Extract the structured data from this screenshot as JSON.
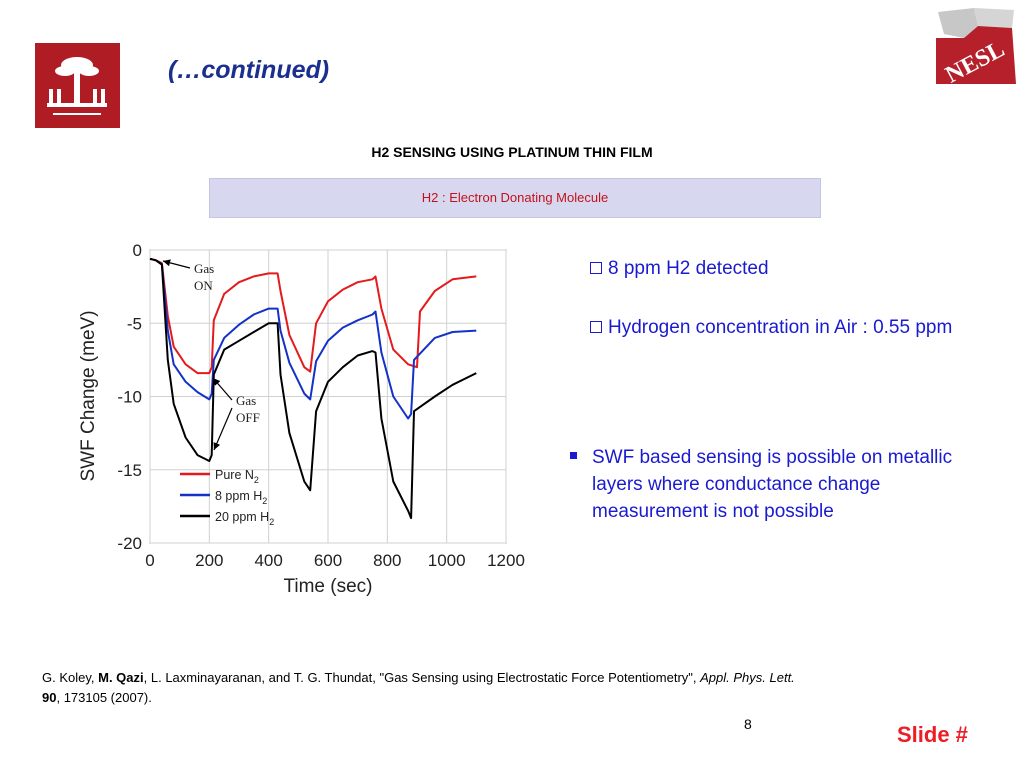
{
  "header": {
    "title": "(…continued)",
    "heading": "H2 SENSING USING PLATINUM THIN FILM",
    "band_text": "H2 : Electron Donating Molecule"
  },
  "logos": {
    "right_text": "NESL"
  },
  "chart_data": {
    "type": "line",
    "xlabel": "Time (sec)",
    "ylabel": "SWF Change (meV)",
    "xlim": [
      0,
      1200
    ],
    "ylim": [
      -20,
      0
    ],
    "xticks": [
      "0",
      "200",
      "400",
      "600",
      "800",
      "1000",
      "1200"
    ],
    "yticks": [
      "0",
      "-5",
      "-10",
      "-15",
      "-20"
    ],
    "legend_position": "bottom-left",
    "annotations": [
      {
        "line1": "Gas",
        "line2": "ON"
      },
      {
        "line1": "Gas",
        "line2": "OFF"
      }
    ],
    "series": [
      {
        "name": "Pure N2",
        "label_main": "Pure N",
        "label_sub": "2",
        "color": "#e41a1c",
        "x": [
          0,
          20,
          40,
          60,
          80,
          120,
          160,
          200,
          208,
          215,
          250,
          300,
          350,
          400,
          430,
          440,
          470,
          520,
          540,
          560,
          600,
          650,
          700,
          750,
          760,
          780,
          820,
          870,
          900,
          910,
          960,
          1020,
          1100
        ],
        "y": [
          -0.6,
          -0.7,
          -0.9,
          -4.5,
          -6.6,
          -7.8,
          -8.4,
          -8.4,
          -8.0,
          -4.8,
          -3.0,
          -2.2,
          -1.8,
          -1.6,
          -1.6,
          -2.8,
          -5.8,
          -8.0,
          -8.3,
          -5.0,
          -3.5,
          -2.7,
          -2.2,
          -2.0,
          -1.8,
          -4.0,
          -6.8,
          -7.8,
          -8.0,
          -4.2,
          -2.8,
          -2.0,
          -1.8
        ]
      },
      {
        "name": "8 ppm H2",
        "label_main": "8 ppm H",
        "label_sub": "2",
        "color": "#1431c8",
        "x": [
          0,
          20,
          40,
          60,
          80,
          120,
          160,
          200,
          208,
          215,
          250,
          300,
          350,
          400,
          430,
          440,
          470,
          520,
          540,
          560,
          600,
          650,
          700,
          750,
          760,
          780,
          820,
          870,
          880,
          890,
          960,
          1020,
          1100
        ],
        "y": [
          -0.6,
          -0.7,
          -1.0,
          -5.5,
          -7.8,
          -9.0,
          -9.7,
          -10.2,
          -9.8,
          -7.5,
          -6.0,
          -5.1,
          -4.4,
          -4.0,
          -4.0,
          -5.5,
          -7.7,
          -9.8,
          -10.2,
          -7.6,
          -6.2,
          -5.3,
          -4.8,
          -4.4,
          -4.2,
          -7.0,
          -10.0,
          -11.5,
          -11.2,
          -7.5,
          -6.0,
          -5.6,
          -5.5
        ]
      },
      {
        "name": "20 ppm H2",
        "label_main": "20 ppm H",
        "label_sub": "2",
        "color": "#000000",
        "x": [
          0,
          20,
          40,
          60,
          80,
          120,
          160,
          200,
          208,
          215,
          250,
          300,
          350,
          400,
          430,
          440,
          470,
          520,
          540,
          560,
          600,
          650,
          700,
          750,
          760,
          780,
          820,
          870,
          880,
          890,
          960,
          1020,
          1100
        ],
        "y": [
          -0.6,
          -0.7,
          -1.0,
          -7.5,
          -10.5,
          -12.8,
          -14.0,
          -14.4,
          -14.0,
          -8.5,
          -6.8,
          -6.2,
          -5.6,
          -5.0,
          -5.0,
          -8.5,
          -12.5,
          -15.8,
          -16.4,
          -11.0,
          -9.0,
          -8.0,
          -7.2,
          -6.9,
          -7.0,
          -11.5,
          -15.8,
          -17.8,
          -18.3,
          -11.0,
          -10.0,
          -9.2,
          -8.4
        ]
      }
    ]
  },
  "bullets": {
    "b1": "8 ppm H2 detected",
    "b2": "Hydrogen concentration in Air : 0.55 ppm",
    "b3": "SWF based sensing is possible on metallic layers where conductance change measurement is not possible"
  },
  "citation": {
    "p1": "G. Koley, ",
    "p2": "M. Qazi",
    "p3": ", L. Laxminayaranan, and T. G. Thundat, \"Gas Sensing using Electrostatic Force Potentiometry\", ",
    "p4": "Appl. Phys. Lett.",
    "p5": "90",
    "p6": ", 173105 (2007)."
  },
  "footer": {
    "page_number": "8",
    "slide_label": "Slide #"
  }
}
